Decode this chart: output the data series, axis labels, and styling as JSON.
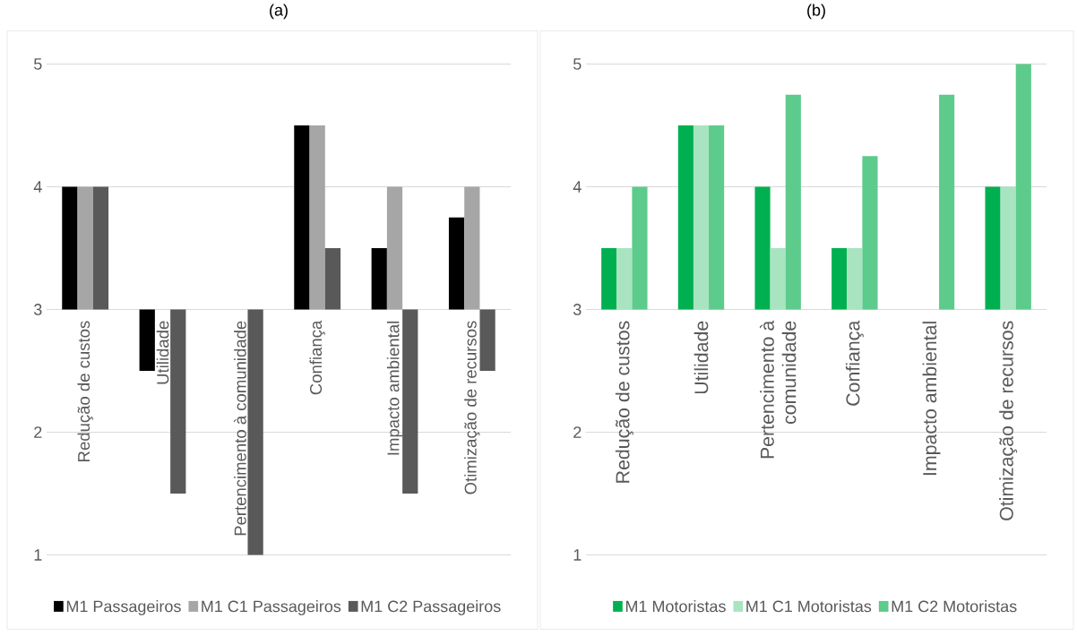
{
  "chart_data": [
    {
      "type": "bar",
      "title": "(a)",
      "categories": [
        "Redução de custos",
        "Utilidade",
        "Pertencimento à comunidade",
        "Confiança",
        "Impacto ambiental",
        "Otimização de recursos"
      ],
      "series": [
        {
          "name": "M1 Passageiros",
          "color": "#000000",
          "base": [
            3,
            3,
            null,
            3,
            3,
            3
          ],
          "values": [
            1,
            -0.5,
            null,
            1.5,
            0.5,
            0.75
          ]
        },
        {
          "name": "M1 C1 Passageiros",
          "color": "#a6a6a6",
          "base": [
            3,
            null,
            null,
            3,
            3,
            3
          ],
          "values": [
            1,
            null,
            null,
            1.5,
            1,
            1
          ]
        },
        {
          "name": "M1 C2 Passageiros",
          "color": "#595959",
          "base": [
            3,
            3,
            3,
            3,
            3,
            3
          ],
          "values": [
            1,
            -1.5,
            -2,
            0.5,
            -1.5,
            -0.5
          ]
        }
      ],
      "ylim": [
        1,
        5
      ],
      "yticks": [
        1,
        2,
        3,
        4,
        5
      ],
      "grid": "y",
      "legend": "bottom"
    },
    {
      "type": "bar",
      "title": "(b)",
      "categories": [
        "Redução de custos",
        "Utilidade",
        "Pertencimento à comunidade",
        "Confiança",
        "Impacto ambiental",
        "Otimização de recursos"
      ],
      "series": [
        {
          "name": "M1 Motoristas",
          "color": "#00b050",
          "base": [
            3,
            3,
            3,
            3,
            null,
            3
          ],
          "values": [
            0.5,
            1.5,
            1,
            0.5,
            null,
            1
          ]
        },
        {
          "name": "M1 C1 Motoristas",
          "color": "#a8e4c0",
          "base": [
            3,
            3,
            3,
            3,
            null,
            3
          ],
          "values": [
            0.5,
            1.5,
            0.5,
            0.5,
            null,
            1
          ]
        },
        {
          "name": "M1 C2 Motoristas",
          "color": "#5ccb8b",
          "base": [
            3,
            3,
            3,
            3,
            3,
            3
          ],
          "values": [
            1,
            1.5,
            1.75,
            1.25,
            1.75,
            2
          ]
        }
      ],
      "ylim": [
        1,
        5
      ],
      "yticks": [
        1,
        2,
        3,
        4,
        5
      ],
      "grid": "y",
      "legend": "bottom"
    }
  ]
}
